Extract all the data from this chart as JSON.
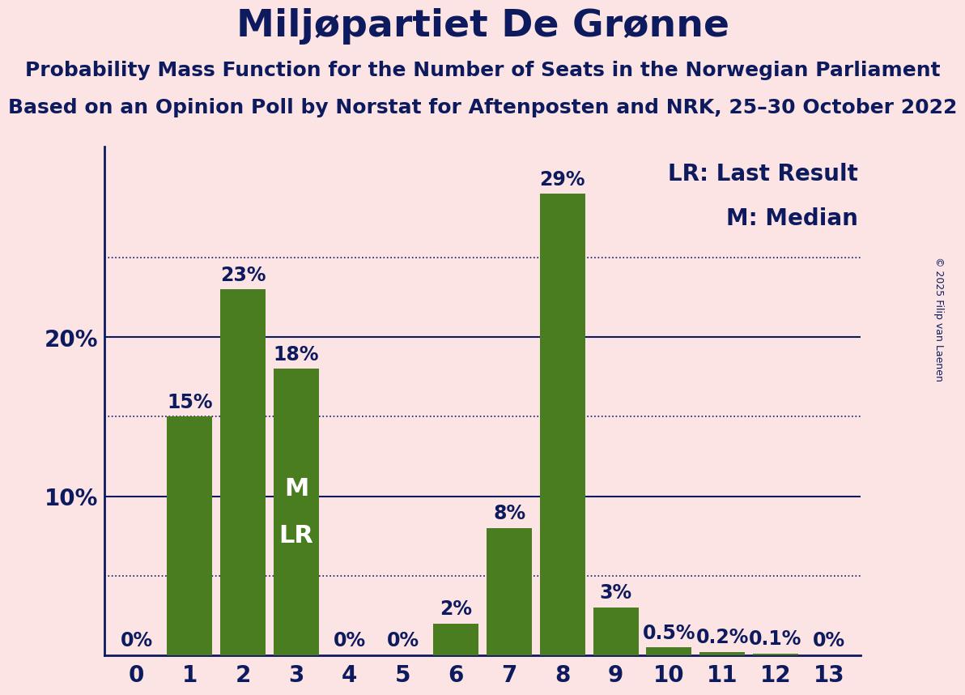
{
  "title": "Miljøpartiet De Grønne",
  "subtitle1": "Probability Mass Function for the Number of Seats in the Norwegian Parliament",
  "subtitle2": "Based on an Opinion Poll by Norstat for Aftenposten and NRK, 25–30 October 2022",
  "copyright": "© 2025 Filip van Laenen",
  "categories": [
    0,
    1,
    2,
    3,
    4,
    5,
    6,
    7,
    8,
    9,
    10,
    11,
    12,
    13
  ],
  "values": [
    0.0,
    15.0,
    23.0,
    18.0,
    0.0,
    0.0,
    2.0,
    8.0,
    29.0,
    3.0,
    0.5,
    0.2,
    0.1,
    0.0
  ],
  "labels": [
    "0%",
    "15%",
    "23%",
    "18%",
    "0%",
    "0%",
    "2%",
    "8%",
    "29%",
    "3%",
    "0.5%",
    "0.2%",
    "0.1%",
    "0%"
  ],
  "bar_color": "#4a7c20",
  "median_bar": 3,
  "median_label": "M",
  "lr_label": "LR",
  "legend_lr": "LR: Last Result",
  "legend_m": "M: Median",
  "background_color": "#fce4e4",
  "text_color": "#0d1b5e",
  "grid_color": "#0d1b5e",
  "solid_yticks": [
    10,
    20
  ],
  "dotted_yticks": [
    5,
    15,
    25
  ],
  "ylim": [
    0,
    32
  ],
  "title_fontsize": 34,
  "subtitle_fontsize": 18,
  "tick_fontsize": 20,
  "legend_fontsize": 20,
  "bar_label_fontsize": 17,
  "ml_label_fontsize": 22,
  "copyright_fontsize": 9,
  "bar_width": 0.85
}
